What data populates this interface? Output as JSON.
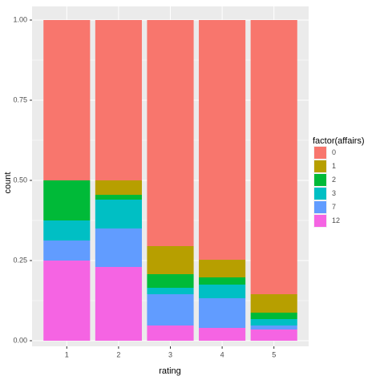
{
  "chart_data": {
    "type": "bar",
    "stacked": true,
    "x_label": "rating",
    "y_label": "count",
    "legend_title": "factor(affairs)",
    "categories": [
      "1",
      "2",
      "3",
      "4",
      "5"
    ],
    "series": [
      {
        "name": "0",
        "color": "#F8766D",
        "values": [
          0.5,
          0.5,
          0.705,
          0.7475,
          0.855
        ]
      },
      {
        "name": "1",
        "color": "#B79F00",
        "values": [
          0,
          0.045,
          0.0875,
          0.055,
          0.0575
        ]
      },
      {
        "name": "2",
        "color": "#00BA38",
        "values": [
          0.125,
          0.015,
          0.0425,
          0.0225,
          0.02
        ]
      },
      {
        "name": "3",
        "color": "#00BFC4",
        "values": [
          0.0625,
          0.09,
          0.02,
          0.0425,
          0.02
        ]
      },
      {
        "name": "7",
        "color": "#619CFF",
        "values": [
          0.0625,
          0.12,
          0.0975,
          0.0925,
          0.0125
        ]
      },
      {
        "name": "12",
        "color": "#F564E3",
        "values": [
          0.25,
          0.23,
          0.0475,
          0.04,
          0.035
        ]
      }
    ],
    "ylim": [
      0,
      1
    ],
    "yticks": [
      {
        "value": 0,
        "label": "0.00"
      },
      {
        "value": 0.25,
        "label": "0.25"
      },
      {
        "value": 0.5,
        "label": "0.50"
      },
      {
        "value": 0.75,
        "label": "0.75"
      },
      {
        "value": 1,
        "label": "1.00"
      }
    ],
    "grid": true
  }
}
